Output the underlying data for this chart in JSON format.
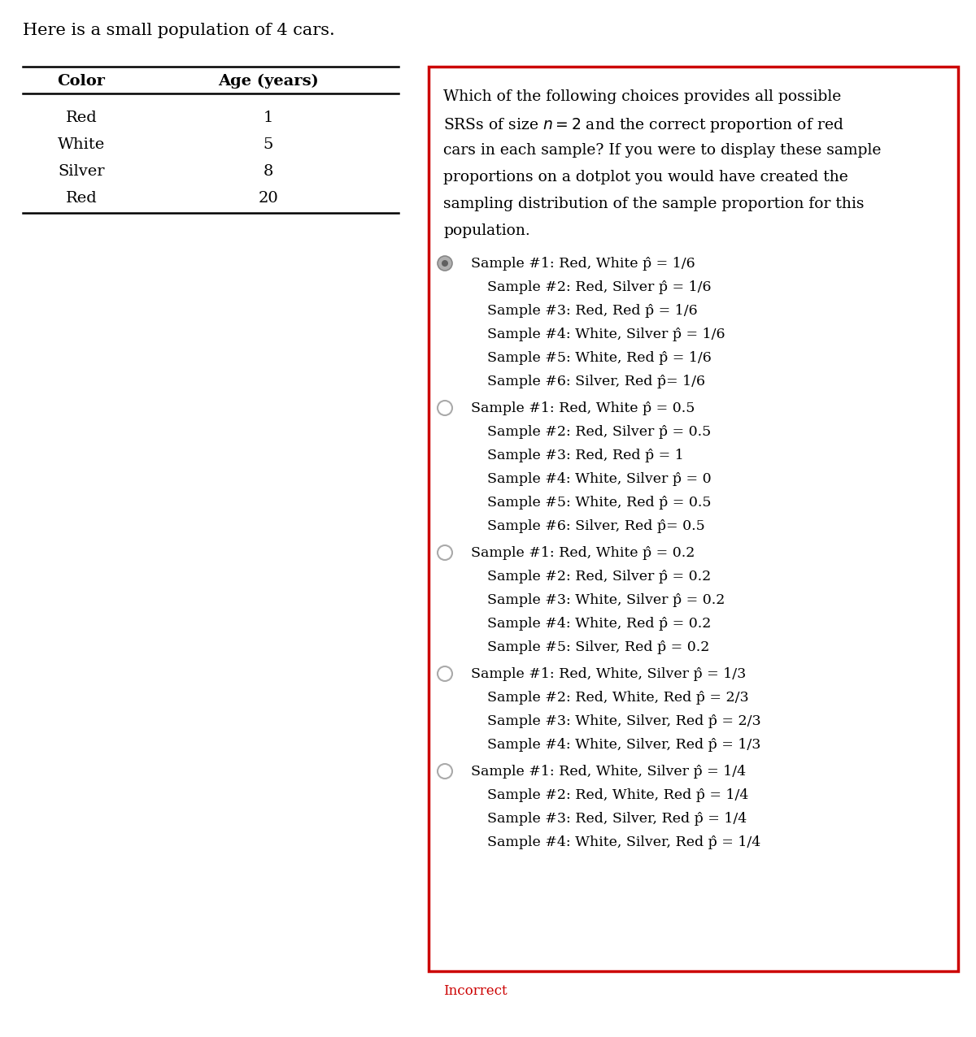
{
  "title": "Here is a small population of 4 cars.",
  "table_header": [
    "Color",
    "Age (years)"
  ],
  "table_rows": [
    [
      "Red",
      "1"
    ],
    [
      "White",
      "5"
    ],
    [
      "Silver",
      "8"
    ],
    [
      "Red",
      "20"
    ]
  ],
  "options": [
    {
      "selected": true,
      "samples": [
        [
          "Sample #1: Red, White ",
          " = 1/6"
        ],
        [
          "Sample #2: Red, Silver ",
          " = 1/6"
        ],
        [
          "Sample #3: Red, Red ",
          " = 1/6"
        ],
        [
          "Sample #4: White, Silver ",
          " = 1/6"
        ],
        [
          "Sample #5: White, Red ",
          " = 1/6"
        ],
        [
          "Sample #6: Silver, Red ",
          "= 1/6"
        ]
      ]
    },
    {
      "selected": false,
      "samples": [
        [
          "Sample #1: Red, White ",
          " = 0.5"
        ],
        [
          "Sample #2: Red, Silver ",
          " = 0.5"
        ],
        [
          "Sample #3: Red, Red ",
          " = 1"
        ],
        [
          "Sample #4: White, Silver ",
          " = 0"
        ],
        [
          "Sample #5: White, Red ",
          " = 0.5"
        ],
        [
          "Sample #6: Silver, Red ",
          "= 0.5"
        ]
      ]
    },
    {
      "selected": false,
      "samples": [
        [
          "Sample #1: Red, White ",
          " = 0.2"
        ],
        [
          "Sample #2: Red, Silver ",
          " = 0.2"
        ],
        [
          "Sample #3: White, Silver ",
          " = 0.2"
        ],
        [
          "Sample #4: White, Red ",
          " = 0.2"
        ],
        [
          "Sample #5: Silver, Red ",
          " = 0.2"
        ]
      ]
    },
    {
      "selected": false,
      "samples": [
        [
          "Sample #1: Red, White, Silver ",
          " = 1/3"
        ],
        [
          "Sample #2: Red, White, Red ",
          " = 2/3"
        ],
        [
          "Sample #3: White, Silver, Red ",
          " = 2/3"
        ],
        [
          "Sample #4: White, Silver, Red ",
          " = 1/3"
        ]
      ]
    },
    {
      "selected": false,
      "samples": [
        [
          "Sample #1: Red, White, Silver ",
          " = 1/4"
        ],
        [
          "Sample #2: Red, White, Red ",
          " = 1/4"
        ],
        [
          "Sample #3: Red, Silver, Red ",
          " = 1/4"
        ],
        [
          "Sample #4: White, Silver, Red ",
          " = 1/4"
        ]
      ]
    }
  ],
  "incorrect_label": "Incorrect",
  "incorrect_color": "#cc0000",
  "box_border_color": "#cc0000",
  "bg_color": "#ffffff",
  "text_color": "#000000"
}
